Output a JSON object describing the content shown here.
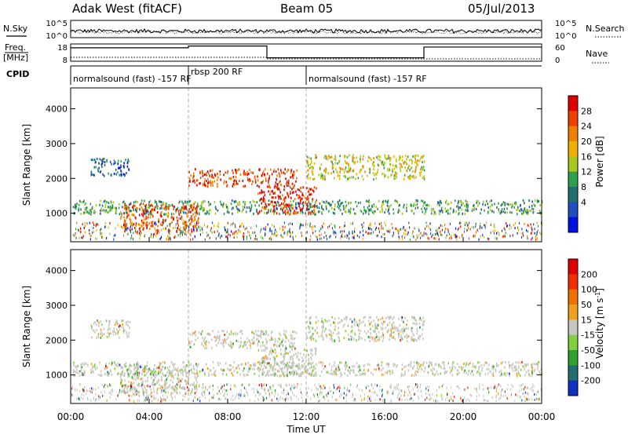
{
  "header": {
    "station": "Adak West (fitACF)",
    "beam": "Beam 05",
    "date": "05/Jul/2013"
  },
  "noise_panel": {
    "left_label": "N.Sky",
    "right_label": "N.Search",
    "ticks_left": [
      "10^5",
      "10^0"
    ],
    "ticks_right": [
      "10^5",
      "10^0"
    ]
  },
  "freq_panel": {
    "left_label_line1": "Freq.",
    "left_label_line2": "[MHz]",
    "right_label": "Nave",
    "ticks_left": [
      "18",
      "8"
    ],
    "ticks_right": [
      "60",
      "0"
    ],
    "freq_segments": [
      {
        "start_h": 0,
        "end_h": 6,
        "level": 0.78
      },
      {
        "start_h": 6,
        "end_h": 10,
        "level": 0.88
      },
      {
        "start_h": 10,
        "end_h": 12,
        "level": 0.2
      },
      {
        "start_h": 12,
        "end_h": 18,
        "level": 0.2
      },
      {
        "start_h": 18,
        "end_h": 24,
        "level": 0.82
      }
    ]
  },
  "cpid": {
    "label": "CPID",
    "segments": [
      {
        "start_h": 0,
        "text": "normalsound (fast) -157 RF"
      },
      {
        "start_h": 6,
        "text": "rbsp 200 RF"
      },
      {
        "start_h": 12,
        "text": "normalsound (fast) -157 RF"
      }
    ]
  },
  "chart_data": [
    {
      "type": "heatmap",
      "name": "",
      "ylabel": "Slant Range [km]",
      "ylim": [
        180,
        4600
      ],
      "yticks": [
        1000,
        2000,
        3000,
        4000
      ],
      "xlim": [
        0,
        24
      ],
      "colorbar": {
        "label": "Power [dB]",
        "ticks": [
          "28",
          "24",
          "20",
          "16",
          "12",
          "8",
          "4"
        ],
        "colors": [
          "#0010e0",
          "#2050c0",
          "#207070",
          "#30a050",
          "#a8c820",
          "#f0b000",
          "#f08000",
          "#f04000",
          "#e00000"
        ]
      },
      "echo_bands": [
        {
          "t0": 0.1,
          "t1": 24,
          "r0": 1000,
          "r1": 1400,
          "intensity": 0.35
        },
        {
          "t0": 2.5,
          "t1": 6.5,
          "r0": 500,
          "r1": 1300,
          "intensity": 0.85
        },
        {
          "t0": 6,
          "t1": 11.5,
          "r0": 1800,
          "r1": 2300,
          "intensity": 0.9
        },
        {
          "t0": 9.5,
          "t1": 12.5,
          "r0": 1000,
          "r1": 1800,
          "intensity": 0.95
        },
        {
          "t0": 12,
          "t1": 18,
          "r0": 2000,
          "r1": 2700,
          "intensity": 0.55
        },
        {
          "t0": 1,
          "t1": 3,
          "r0": 2100,
          "r1": 2600,
          "intensity": 0.2
        }
      ]
    },
    {
      "type": "heatmap",
      "name": "",
      "ylabel": "Slant Range [km]",
      "ylim": [
        180,
        4600
      ],
      "yticks": [
        1000,
        2000,
        3000,
        4000
      ],
      "xlim": [
        0,
        24
      ],
      "xlabel": "Time UT",
      "xticks": [
        "00:00",
        "04:00",
        "08:00",
        "12:00",
        "16:00",
        "20:00",
        "00:00"
      ],
      "colorbar": {
        "label": "Velocity [m s",
        "label_sup": "-1",
        "label_end": "]",
        "ticks": [
          "200",
          "100",
          "50",
          "15",
          "-15",
          "-50",
          "-100",
          "-200"
        ],
        "colors": [
          "#1030c0",
          "#207070",
          "#30a030",
          "#80d040",
          "#c8c8c0",
          "#f0a020",
          "#f07000",
          "#f03000",
          "#e00000"
        ]
      }
    }
  ]
}
